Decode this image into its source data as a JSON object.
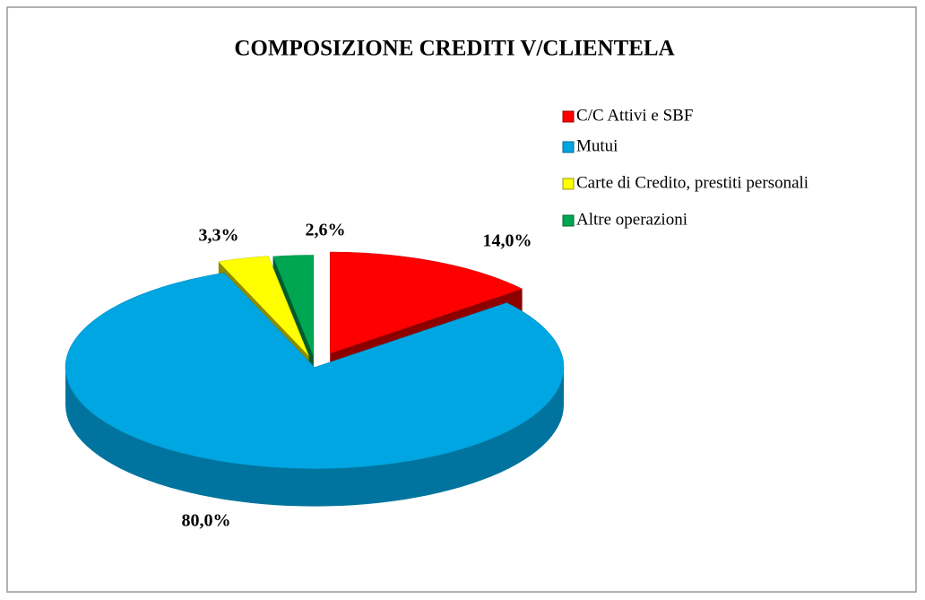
{
  "chart_data": {
    "type": "pie",
    "title": "COMPOSIZIONE  CREDITI V/CLIENTELA",
    "categories": [
      "C/C Attivi  e SBF",
      "Mutui",
      "Carte di Credito, prestiti personali",
      "Altre operazioni"
    ],
    "values": [
      14.0,
      80.0,
      3.3,
      2.6
    ],
    "value_labels": [
      "14,0%",
      "80,0%",
      "3,3%",
      "2,6%"
    ],
    "colors": [
      "#ff0000",
      "#00a6e2",
      "#ffff00",
      "#00a651"
    ],
    "legend": "right"
  }
}
